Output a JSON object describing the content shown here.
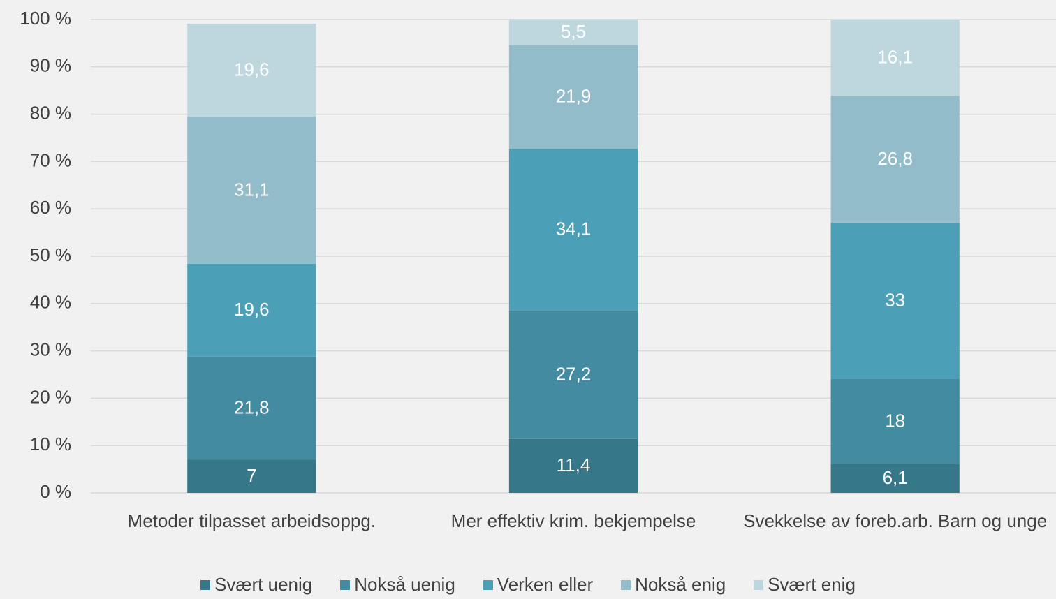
{
  "chart_data": {
    "type": "stacked_bar",
    "categories": [
      "Metoder tilpasset arbeidsoppg.",
      "Mer effektiv krim. bekjempelse",
      "Svekkelse av foreb.arb. Barn og unge"
    ],
    "series": [
      {
        "name": "Svært uenig",
        "color": "#367889",
        "values": [
          7,
          11.4,
          6.1
        ],
        "value_labels": [
          "7",
          "11,4",
          "6,1"
        ]
      },
      {
        "name": "Nokså uenig",
        "color": "#438ba0",
        "values": [
          21.8,
          27.2,
          18
        ],
        "value_labels": [
          "21,8",
          "27,2",
          "18"
        ]
      },
      {
        "name": "Verken eller",
        "color": "#4ba0b8",
        "values": [
          19.6,
          34.1,
          33
        ],
        "value_labels": [
          "19,6",
          "34,1",
          "33"
        ]
      },
      {
        "name": "Nokså enig",
        "color": "#93bccb",
        "values": [
          31.1,
          21.9,
          26.8
        ],
        "value_labels": [
          "31,1",
          "21,9",
          "26,8"
        ]
      },
      {
        "name": "Svært enig",
        "color": "#bed6de",
        "values": [
          19.6,
          5.5,
          16.1
        ],
        "value_labels": [
          "19,6",
          "5,5",
          "16,1"
        ]
      }
    ],
    "ylim": [
      0,
      100
    ],
    "yticks": [
      {
        "value": 0,
        "label": "0 %"
      },
      {
        "value": 10,
        "label": "10 %"
      },
      {
        "value": 20,
        "label": "20 %"
      },
      {
        "value": 30,
        "label": "30 %"
      },
      {
        "value": 40,
        "label": "40 %"
      },
      {
        "value": 50,
        "label": "50 %"
      },
      {
        "value": 60,
        "label": "60 %"
      },
      {
        "value": 70,
        "label": "70 %"
      },
      {
        "value": 80,
        "label": "80 %"
      },
      {
        "value": 90,
        "label": "90 %"
      },
      {
        "value": 100,
        "label": "100 %"
      }
    ],
    "grid": true,
    "legend": "bottom"
  }
}
